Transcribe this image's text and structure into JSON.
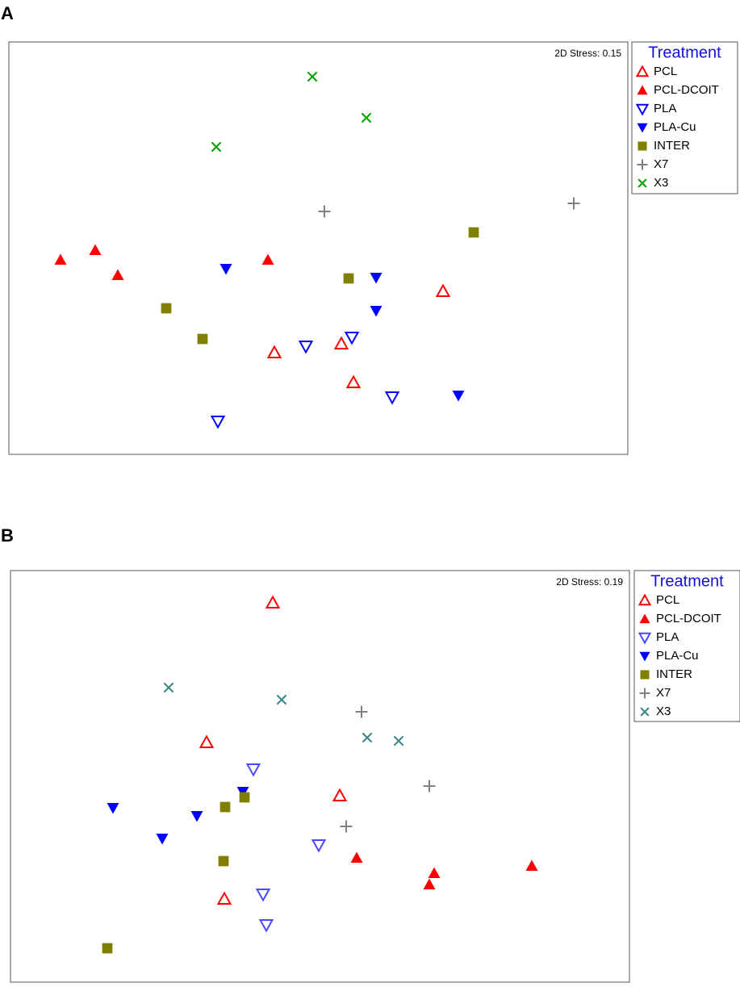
{
  "chart_data": [
    {
      "type": "scatter",
      "panel": "A",
      "annotation": "2D Stress: 0.15",
      "legend_title": "Treatment",
      "legend": "right",
      "xlim": [
        0,
        767
      ],
      "ylim": [
        0,
        511
      ],
      "series": [
        {
          "name": "PCL",
          "color": "#ff0000",
          "marker": "triangle-up-open",
          "x": [
            329,
            412,
            427,
            538
          ],
          "y": [
            126,
            137,
            89,
            202
          ]
        },
        {
          "name": "PCL-DCOIT",
          "color": "#ff0000",
          "marker": "triangle-up",
          "x": [
            64,
            107,
            135,
            321
          ],
          "y": [
            241,
            253,
            222,
            241
          ]
        },
        {
          "name": "PLA",
          "color": "#0000ff",
          "marker": "triangle-down-open",
          "x": [
            259,
            368,
            425,
            475
          ],
          "y": [
            41,
            134,
            145,
            71
          ]
        },
        {
          "name": "PLA-Cu",
          "color": "#0000ff",
          "marker": "triangle-down",
          "x": [
            269,
            455,
            455,
            557
          ],
          "y": [
            230,
            219,
            178,
            73
          ]
        },
        {
          "name": "INTER",
          "color": "#808000",
          "marker": "square",
          "x": [
            195,
            240,
            421,
            576
          ],
          "y": [
            181,
            143,
            218,
            275
          ]
        },
        {
          "name": "X7",
          "color": "#808080",
          "marker": "plus",
          "x": [
            391,
            700
          ],
          "y": [
            301,
            311
          ]
        },
        {
          "name": "X3",
          "color": "#00a000",
          "marker": "cross",
          "x": [
            376,
            443,
            257
          ],
          "y": [
            468,
            417,
            381
          ]
        }
      ]
    },
    {
      "type": "scatter",
      "panel": "B",
      "annotation": "2D Stress: 0.19",
      "legend_title": "Treatment",
      "legend": "right",
      "xlim": [
        0,
        767
      ],
      "ylim": [
        0,
        510
      ],
      "series": [
        {
          "name": "PCL",
          "color": "#ff0000",
          "marker": "triangle-up-open",
          "x": [
            325,
            243,
            408,
            265
          ],
          "y": [
            470,
            297,
            231,
            103
          ]
        },
        {
          "name": "PCL-DCOIT",
          "color": "#ff0000",
          "marker": "triangle-up",
          "x": [
            429,
            525,
            519,
            646
          ],
          "y": [
            154,
            135,
            121,
            144
          ]
        },
        {
          "name": "PLA",
          "color": "#4848ff",
          "marker": "triangle-down-open",
          "x": [
            301,
            382,
            313,
            317
          ],
          "y": [
            264,
            170,
            109,
            71
          ]
        },
        {
          "name": "PLA-Cu",
          "color": "#0000ff",
          "marker": "triangle-down",
          "x": [
            127,
            188,
            231,
            288
          ],
          "y": [
            216,
            178,
            206,
            236
          ]
        },
        {
          "name": "INTER",
          "color": "#808000",
          "marker": "square",
          "x": [
            266,
            290,
            264,
            120
          ],
          "y": [
            217,
            229,
            150,
            42
          ]
        },
        {
          "name": "X7",
          "color": "#808080",
          "marker": "plus",
          "x": [
            435,
            519,
            416
          ],
          "y": [
            335,
            243,
            193
          ]
        },
        {
          "name": "X3",
          "color": "#3a8585",
          "marker": "cross",
          "x": [
            196,
            336,
            442,
            481
          ],
          "y": [
            365,
            350,
            303,
            299
          ]
        }
      ]
    }
  ]
}
